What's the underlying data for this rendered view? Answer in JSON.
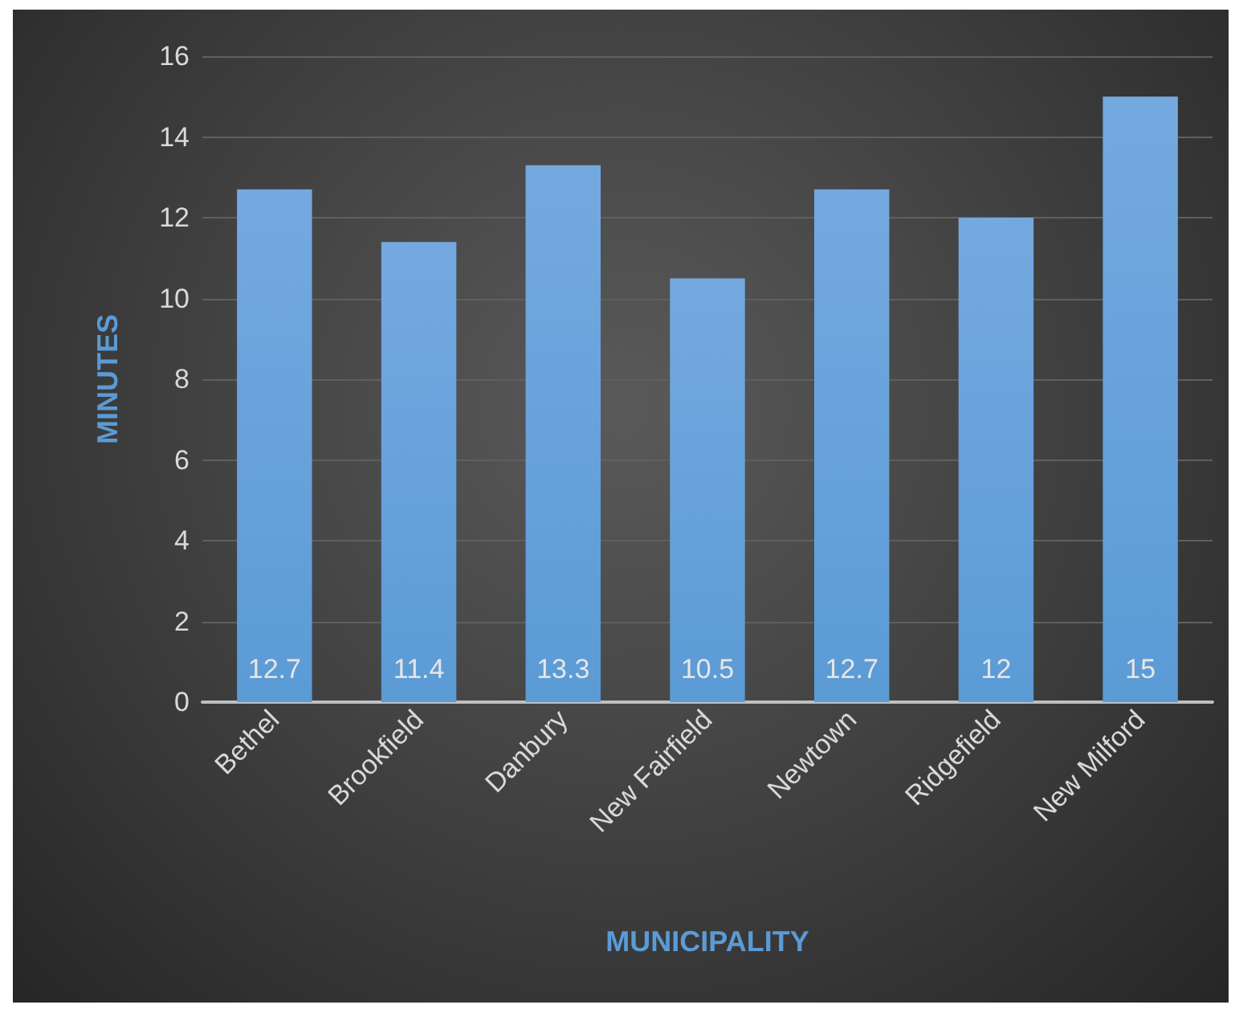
{
  "chart_data": {
    "type": "bar",
    "xlabel": "MUNICIPALITY",
    "ylabel": "MINUTES",
    "categories": [
      "Bethel",
      "Brookfield",
      "Danbury",
      "New Fairfield",
      "Newtown",
      "Ridgefield",
      "New Milford"
    ],
    "values": [
      12.7,
      11.4,
      13.3,
      10.5,
      12.7,
      12,
      15
    ],
    "color": "#5b9bd5",
    "ylim": [
      0,
      16
    ],
    "yticks": [
      0,
      2,
      4,
      6,
      8,
      10,
      12,
      14,
      16
    ],
    "grid": "y",
    "data_labels": true
  }
}
